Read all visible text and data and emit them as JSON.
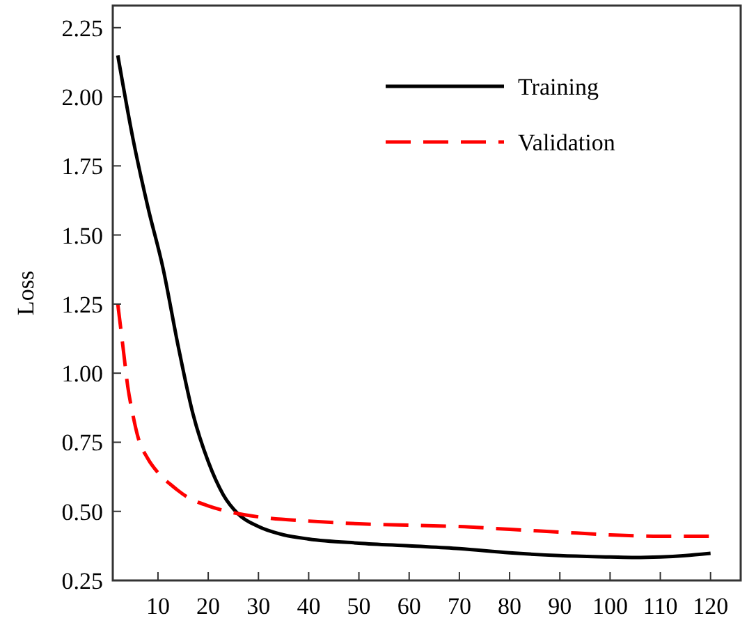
{
  "chart_data": {
    "type": "line",
    "ylabel": "Loss",
    "xlim": [
      1,
      126
    ],
    "ylim": [
      0.25,
      2.33
    ],
    "xticks": [
      10,
      20,
      30,
      40,
      50,
      60,
      70,
      80,
      90,
      100,
      110,
      120
    ],
    "yticks": [
      {
        "value": 0.25,
        "label": "0.25"
      },
      {
        "value": 0.5,
        "label": "0.50"
      },
      {
        "value": 0.75,
        "label": "0.75"
      },
      {
        "value": 1,
        "label": "1.00"
      },
      {
        "value": 1.25,
        "label": "1.25"
      },
      {
        "value": 1.5,
        "label": "1.50"
      },
      {
        "value": 1.75,
        "label": "1.75"
      },
      {
        "value": 2,
        "label": "2.00"
      },
      {
        "value": 2.25,
        "label": "2.25"
      }
    ],
    "grid": false,
    "legend": "top right",
    "marker": "none",
    "series": [
      {
        "name": "Training",
        "color": "#000000",
        "line_style": "solid",
        "x": [
          2,
          5,
          8,
          11,
          14,
          17,
          20,
          23,
          26,
          30,
          35,
          40,
          50,
          60,
          70,
          80,
          90,
          100,
          105,
          110,
          115,
          120
        ],
        "values": [
          2.15,
          1.85,
          1.6,
          1.38,
          1.1,
          0.85,
          0.68,
          0.56,
          0.49,
          0.445,
          0.415,
          0.4,
          0.385,
          0.375,
          0.365,
          0.35,
          0.34,
          0.335,
          0.333,
          0.335,
          0.34,
          0.348
        ]
      },
      {
        "name": "Validation",
        "color": "#ff0000",
        "line_style": "dashed",
        "x": [
          2,
          3,
          4,
          5,
          6,
          8,
          10,
          13,
          16,
          20,
          25,
          30,
          40,
          50,
          60,
          70,
          80,
          90,
          100,
          110,
          120
        ],
        "values": [
          1.25,
          1.1,
          0.95,
          0.85,
          0.77,
          0.69,
          0.64,
          0.59,
          0.55,
          0.52,
          0.495,
          0.48,
          0.465,
          0.455,
          0.45,
          0.445,
          0.435,
          0.425,
          0.415,
          0.41,
          0.41
        ]
      }
    ]
  }
}
